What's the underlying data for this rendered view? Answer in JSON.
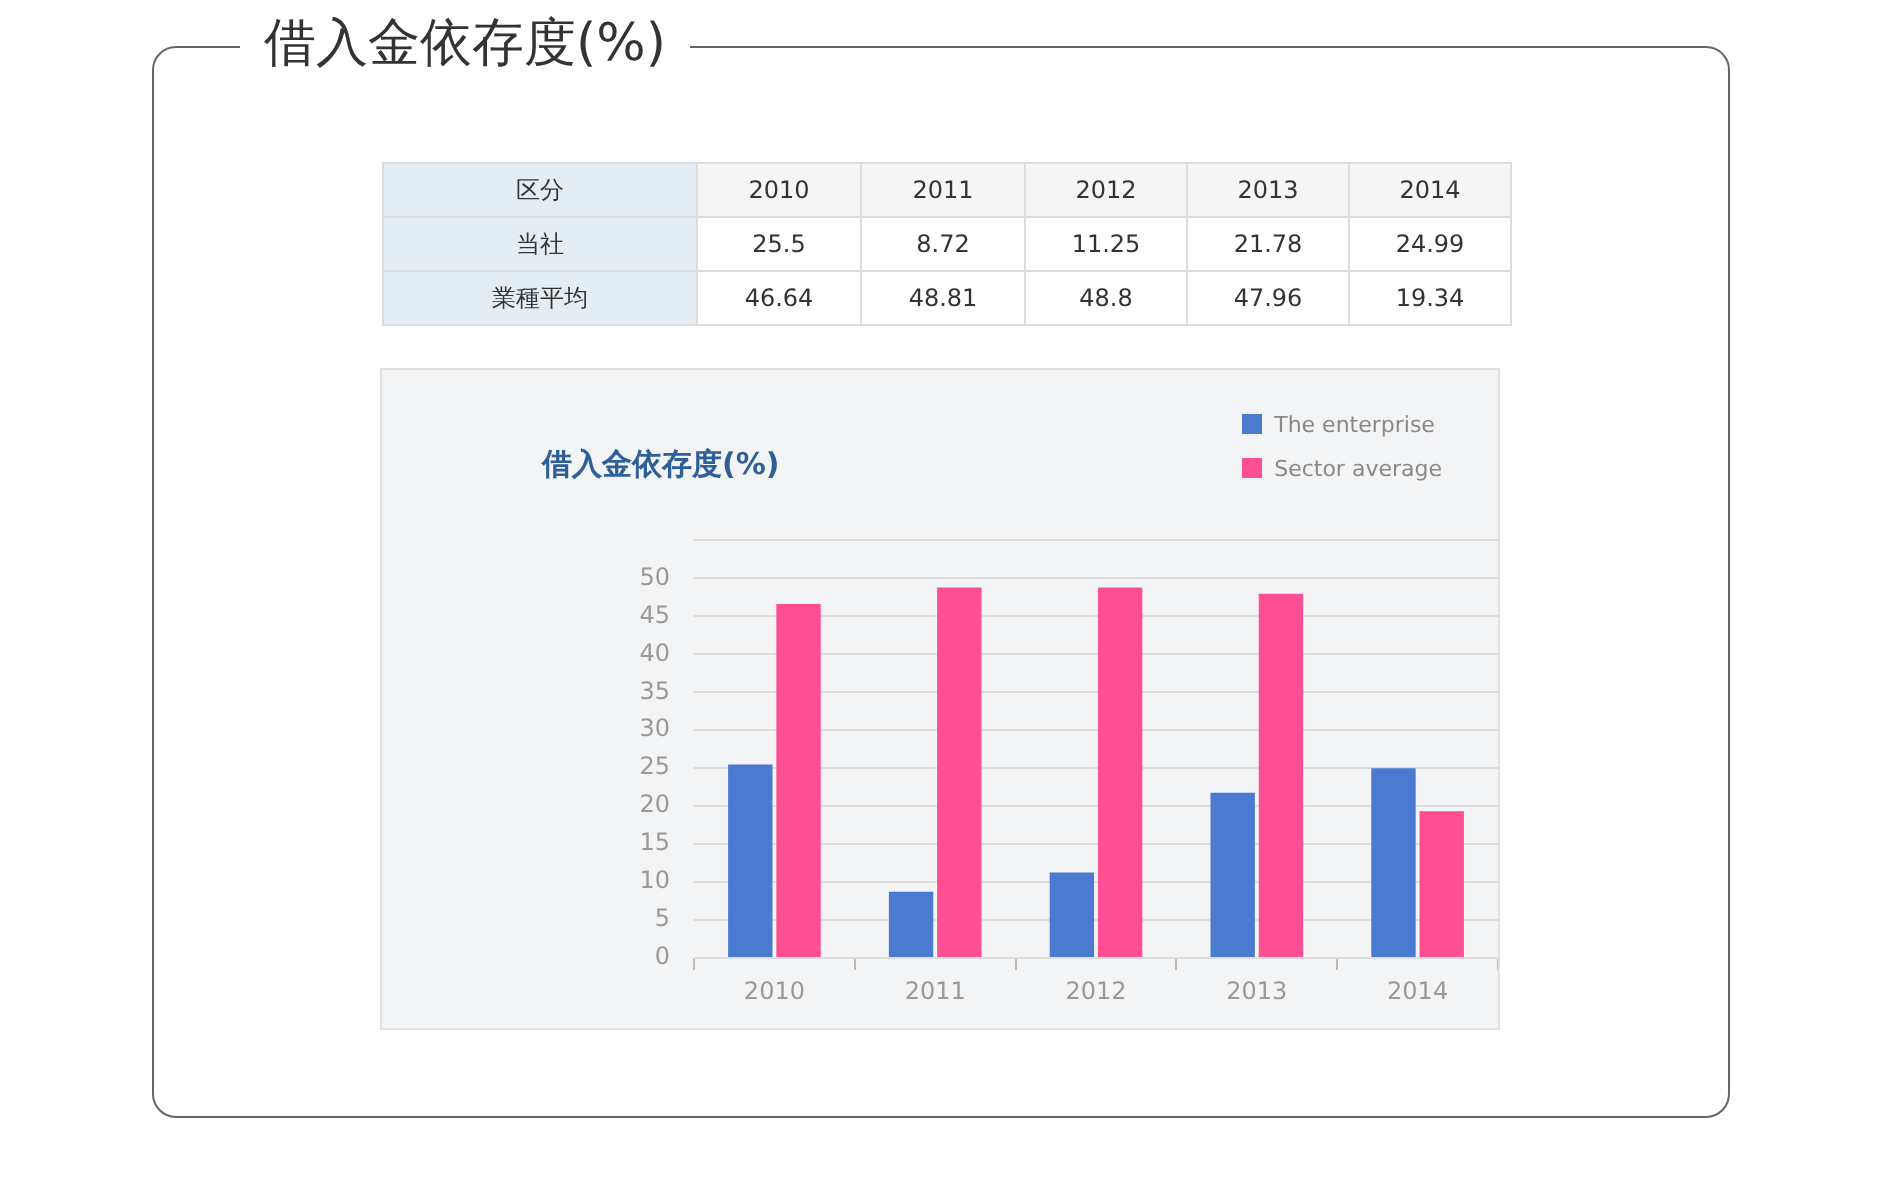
{
  "chart_data": {
    "type": "bar",
    "title": "借入金依存度(%)",
    "categories": [
      "2010",
      "2011",
      "2012",
      "2013",
      "2014"
    ],
    "series": [
      {
        "name": "The enterprise",
        "color": "#4a7bd0",
        "values": [
          25.5,
          8.72,
          11.25,
          21.78,
          24.99
        ]
      },
      {
        "name": "Sector average",
        "color": "#ff4f93",
        "values": [
          46.64,
          48.81,
          48.8,
          47.96,
          19.34
        ]
      }
    ],
    "ylim": [
      0,
      55
    ],
    "yticks": [
      0,
      5,
      10,
      15,
      20,
      25,
      30,
      35,
      40,
      45,
      50,
      {
        "value": 55,
        "label": null
      }
    ],
    "grid": "y",
    "legend": "top right",
    "data_labels": true,
    "annotations": [
      "区分",
      "当社",
      "業種平均"
    ]
  }
}
